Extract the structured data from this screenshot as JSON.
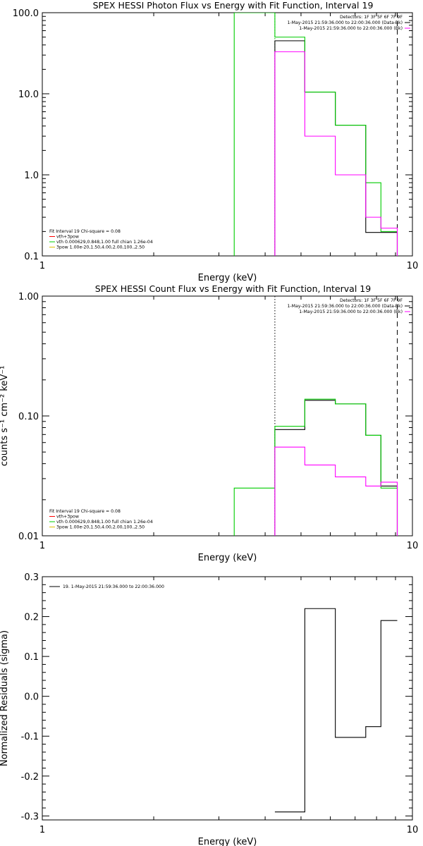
{
  "chart_data": [
    {
      "type": "line",
      "step": true,
      "title": "SPEX HESSI Photon Flux vs Energy with Fit Function, Interval 19",
      "xlabel": "Energy (keV)",
      "ylabel": "",
      "xlog": true,
      "ylog": true,
      "xlim": [
        1,
        10
      ],
      "ylim": [
        0.1,
        100
      ],
      "xticks": [
        "1",
        "10"
      ],
      "yticks": [
        "0.1",
        "1.0",
        "10.0",
        "100.0"
      ],
      "ytick_values": [
        0.1,
        1,
        10,
        100
      ],
      "legend_tr": [
        {
          "text": "Detectors: 1F 3F 5F 6F 7F 9F",
          "color": ""
        },
        {
          "text": "1-May-2015 21:59:36.000 to 22:00:36.000 (Data-Bk)",
          "color": "#000000"
        },
        {
          "text": "1-May-2015 21:59:36.000 to 22:00:36.000 (Bk)",
          "color": "#ff00ff"
        }
      ],
      "legend_bl": [
        {
          "text": "Fit Interval 19   Chi-square = 0.08",
          "color": ""
        },
        {
          "text": "vth+3pow",
          "color": "#ff0000"
        },
        {
          "text": "vth 0.000629,0.848,1.00  full chian 1.26e-04",
          "color": "#00cc00"
        },
        {
          "text": "3pow 1.00e-20,1.50,4.00,2.00,100.,2.50",
          "color": "#e0c000"
        }
      ],
      "vlines": [
        {
          "x": 4.25,
          "style": "dotted",
          "color": "#00aa00"
        },
        {
          "x": 9.1,
          "style": "dashed",
          "color": "#000000"
        }
      ],
      "series": [
        {
          "color": "#000000",
          "edges": [
            4.25,
            5.12,
            6.19,
            7.48,
            9.1
          ],
          "values": [
            45,
            10.5,
            4.1,
            0.195
          ]
        },
        {
          "color": "#00cc00",
          "edges": [
            3.3,
            4.25,
            5.12,
            6.19,
            7.48,
            8.22,
            9.1
          ],
          "values": [
            100,
            50,
            10.5,
            4.1,
            0.8,
            0.2
          ]
        },
        {
          "color": "#ff00ff",
          "edges": [
            4.25,
            5.12,
            6.19,
            7.48,
            8.22,
            9.1
          ],
          "values": [
            33,
            3.0,
            1.0,
            0.3,
            0.22
          ]
        }
      ]
    },
    {
      "type": "line",
      "step": true,
      "title": "SPEX HESSI Count Flux vs Energy with Fit Function, Interval 19",
      "xlabel": "Energy (keV)",
      "ylabel": "counts s⁻¹ cm⁻² keV⁻¹",
      "xlog": true,
      "ylog": true,
      "xlim": [
        1,
        10
      ],
      "ylim": [
        0.01,
        1
      ],
      "xticks": [
        "1",
        "10"
      ],
      "yticks": [
        "0.01",
        "0.10",
        "1.00"
      ],
      "ytick_values": [
        0.01,
        0.1,
        1
      ],
      "legend_tr": [
        {
          "text": "Detectors: 1F 3F 5F 6F 7F 9F",
          "color": ""
        },
        {
          "text": "1-May-2015 21:59:36.000 to 22:00:36.000 (Data-Bk)",
          "color": "#000000"
        },
        {
          "text": "1-May-2015 21:59:36.000 to 22:00:36.000 (Bk)",
          "color": "#ff00ff"
        }
      ],
      "legend_bl": [
        {
          "text": "Fit Interval 19   Chi-square = 0.08",
          "color": ""
        },
        {
          "text": "vth+3pow",
          "color": "#ff0000"
        },
        {
          "text": "vth 0.000629,0.848,1.00  full chian 1.26e-04",
          "color": "#00cc00"
        },
        {
          "text": "3pow 1.00e-20,1.50,4.00,2.00,100.,2.50",
          "color": "#e0c000"
        }
      ],
      "vlines": [
        {
          "x": 4.25,
          "style": "dotted",
          "color": "#000000"
        },
        {
          "x": 9.1,
          "style": "dashed",
          "color": "#000000"
        }
      ],
      "series": [
        {
          "color": "#000000",
          "edges": [
            4.25,
            5.12,
            6.19,
            7.48,
            8.22,
            9.1
          ],
          "values": [
            0.077,
            0.135,
            0.126,
            0.069,
            0.026
          ]
        },
        {
          "color": "#00cc00",
          "edges": [
            3.3,
            4.25,
            5.12,
            6.19,
            7.48,
            8.22,
            9.1
          ],
          "values": [
            0.025,
            0.082,
            0.138,
            0.126,
            0.069,
            0.025
          ]
        },
        {
          "color": "#ff00ff",
          "edges": [
            4.25,
            5.12,
            6.19,
            7.48,
            8.22,
            9.1
          ],
          "values": [
            0.055,
            0.039,
            0.031,
            0.026,
            0.028
          ]
        }
      ]
    },
    {
      "type": "line",
      "step": true,
      "title": "",
      "xlabel": "Energy (keV)",
      "ylabel": "Normalized Residuals (sigma)",
      "xlog": true,
      "ylog": false,
      "xlim": [
        1,
        10
      ],
      "ylim": [
        -0.31,
        0.3
      ],
      "xticks": [
        "1",
        "10"
      ],
      "yticks": [
        "-0.3",
        "-0.2",
        "-0.1",
        "0.0",
        "0.1",
        "0.2",
        "0.3"
      ],
      "ytick_values": [
        -0.3,
        -0.2,
        -0.1,
        0.0,
        0.1,
        0.2,
        0.3
      ],
      "legend_tr": [],
      "legend_tl": [
        {
          "text": "19.  1-May-2015 21:59:36.000 to 22:00:36.000",
          "color": "#000000"
        }
      ],
      "legend_bl": [],
      "vlines": [],
      "series": [
        {
          "color": "#000000",
          "edges": [
            4.25,
            5.12,
            6.19,
            7.48,
            8.22,
            9.1
          ],
          "values": [
            -0.29,
            0.22,
            -0.103,
            -0.076,
            0.19
          ]
        }
      ]
    }
  ]
}
